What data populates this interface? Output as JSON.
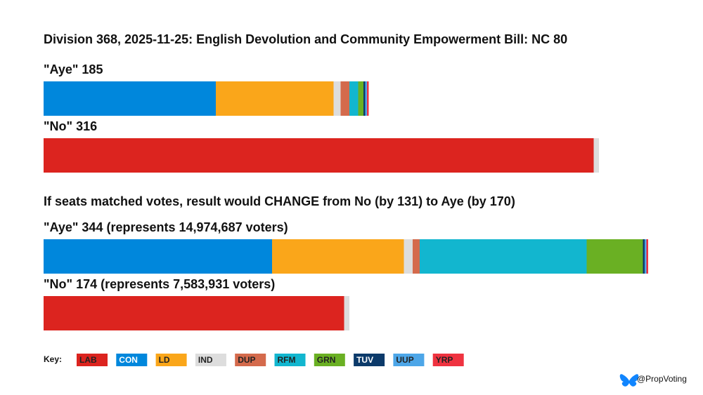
{
  "chart_data": {
    "type": "stacked-bar",
    "title": "Division 368, 2025-11-25: English Devolution and Community Empowerment Bill: NC 80",
    "subtitle": "If seats matched votes, result would CHANGE from No (by 131) to Aye (by 170)",
    "xlim": [
      0,
      350
    ],
    "parties": [
      {
        "name": "LAB",
        "color": "#dc241f",
        "text_color": "#222222"
      },
      {
        "name": "CON",
        "color": "#0087dc",
        "text_color": "#ffffff"
      },
      {
        "name": "LD",
        "color": "#faa61a",
        "text_color": "#222222"
      },
      {
        "name": "IND",
        "color": "#dddddd",
        "text_color": "#222222"
      },
      {
        "name": "DUP",
        "color": "#d46a4c",
        "text_color": "#222222"
      },
      {
        "name": "RFM",
        "color": "#12b6cf",
        "text_color": "#222222"
      },
      {
        "name": "GRN",
        "color": "#6ab023",
        "text_color": "#222222"
      },
      {
        "name": "TUV",
        "color": "#0c3a6a",
        "text_color": "#ffffff"
      },
      {
        "name": "UUP",
        "color": "#4da6e8",
        "text_color": "#222222"
      },
      {
        "name": "YRP",
        "color": "#ef3340",
        "text_color": "#222222"
      }
    ],
    "bars": [
      {
        "label": "\"Aye\" 185",
        "values": [
          0,
          98,
          67,
          4,
          5,
          5,
          3,
          1,
          1,
          1
        ]
      },
      {
        "label": "\"No\" 316",
        "values": [
          313,
          0,
          0,
          3,
          0,
          0,
          0,
          0,
          0,
          0
        ]
      },
      {
        "label": "\"Aye\" 344 (represents 14,974,687 voters)",
        "values": [
          0,
          130,
          75,
          5,
          4,
          95,
          32,
          1,
          1,
          1
        ]
      },
      {
        "label": "\"No\" 174 (represents 7,583,931 voters)",
        "values": [
          171,
          0,
          0,
          3,
          0,
          0,
          0,
          0,
          0,
          0
        ]
      }
    ],
    "key_label": "Key:",
    "credit": "@PropVoting"
  }
}
